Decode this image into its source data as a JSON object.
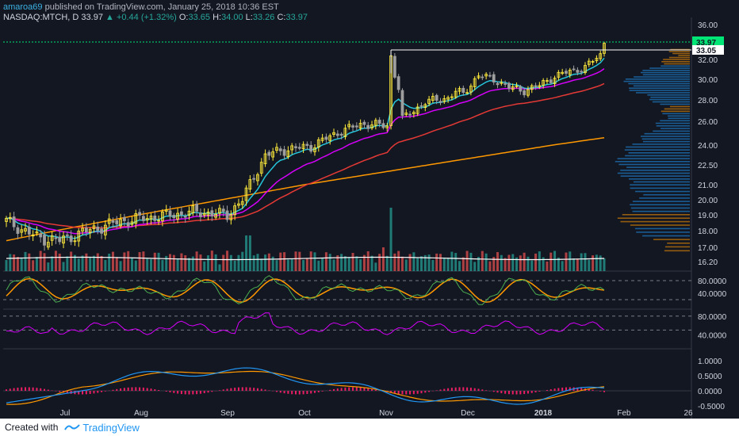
{
  "header": {
    "publisher": "amaroa69",
    "published_text": "published on TradingView.com, January 25, 2018 10:36 EST",
    "symbol": "NASDAQ:MTCH, D",
    "last": "33.97",
    "change_icon": "triangle-up-icon",
    "change": "+0.44 (+1.32%)",
    "o_label": "O:",
    "o_value": "33.65",
    "h_label": "H:",
    "h_value": "34.00",
    "l_label": "L:",
    "l_value": "33.26",
    "c_label": "C:",
    "c_value": "33.97"
  },
  "footer": {
    "created_with": "Created with",
    "brand": "TradingView",
    "brand_icon": "tradingview-logo-icon"
  },
  "chart_data": {
    "type": "candlestick",
    "x_ticks": [
      "Jul",
      "Aug",
      "Sep",
      "Oct",
      "Nov",
      "Dec",
      "2018",
      "Feb",
      "26"
    ],
    "price_axis": [
      "36.00",
      "33.97",
      "33.05",
      "32.00",
      "30.00",
      "28.00",
      "26.00",
      "24.00",
      "22.50",
      "21.00",
      "20.00",
      "19.00",
      "18.00",
      "17.00",
      "16.20"
    ],
    "price_range": [
      16.0,
      36.3
    ],
    "last_price": 33.97,
    "last_price_label": "33.97",
    "level_line": 33.05,
    "level_label": "33.05",
    "stoch_axis": [
      "80.0000",
      "40.0000"
    ],
    "rsi_axis": [
      "80.0000",
      "40.0000"
    ],
    "macd_axis": [
      "1.0000",
      "0.5000",
      "0.0000",
      "-0.5000"
    ],
    "colors": {
      "background": "#131722",
      "up_candle": "#ffeb3b",
      "down_candle": "#9e9e9e",
      "ema_fast": "#26c6da",
      "ema_mid": "#d500f9",
      "ema_slow": "#e53935",
      "sma_long": "#ff9800",
      "vol_up": "#26a69a",
      "vol_down": "#ef5350",
      "volume_profile": "#2196f3",
      "volume_profile_alt": "#ff9800",
      "price_label_bg": "#00e676",
      "macd_line": "#2196f3",
      "signal_line": "#ff9800",
      "histogram": "#e91e63",
      "rsi_line": "#d500f9"
    },
    "grid": false,
    "legend": "none"
  }
}
